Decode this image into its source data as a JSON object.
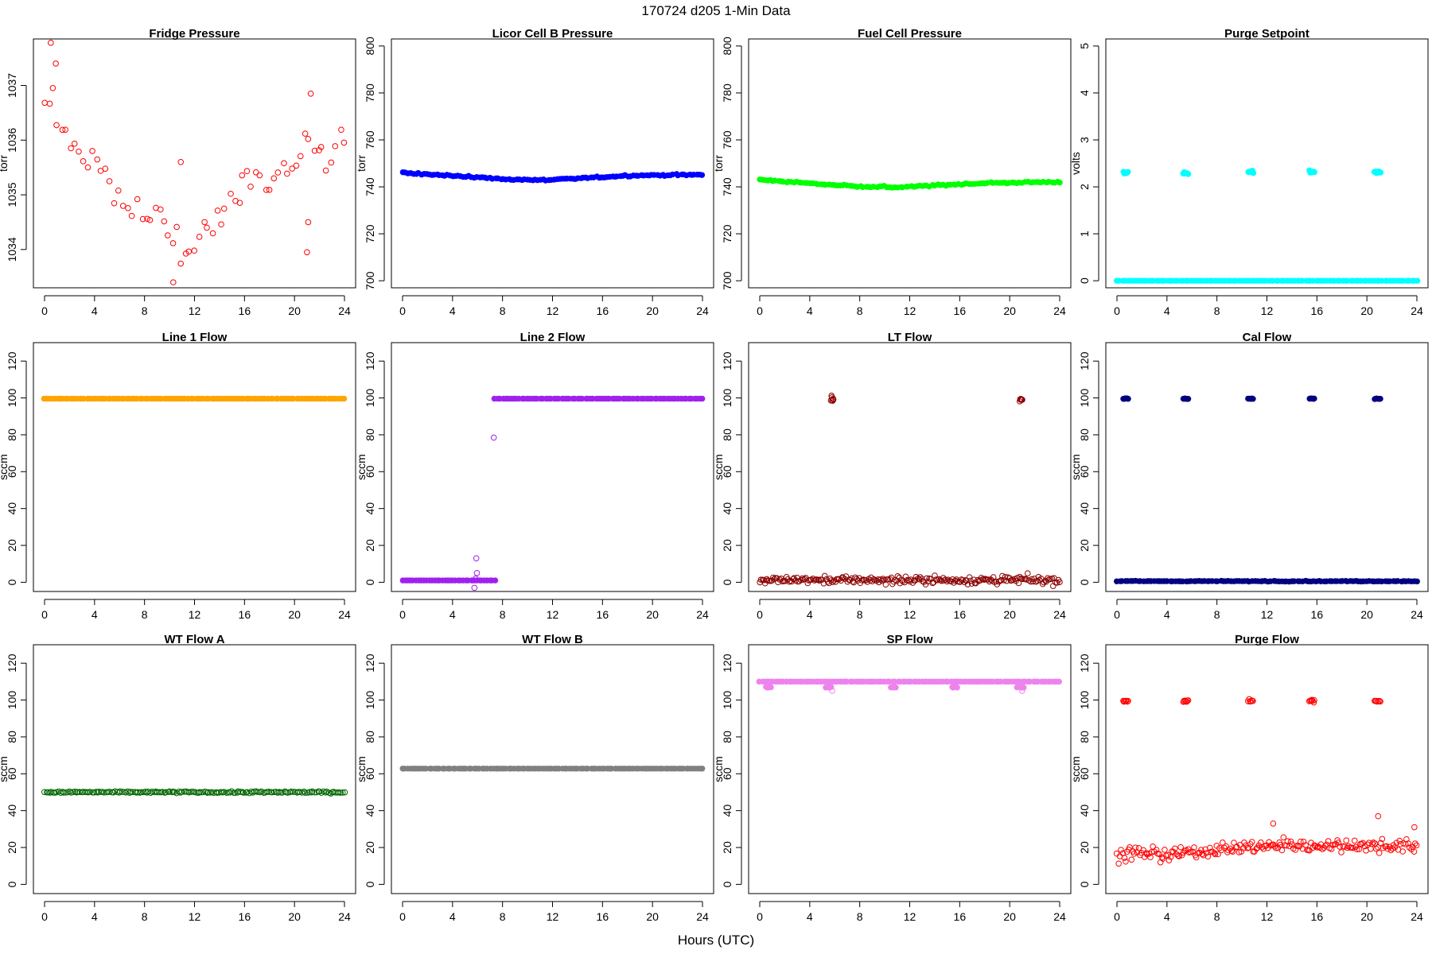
{
  "page": {
    "title": "170724   d205   1-Min Data",
    "xlabel": "Hours (UTC)"
  },
  "chart_data": [
    {
      "type": "scatter",
      "title": "Fridge Pressure",
      "ylabel": "torr",
      "xlim": [
        0,
        24
      ],
      "ylim": [
        1033.3,
        1037.85
      ],
      "xticks": [
        0,
        4,
        8,
        12,
        16,
        20,
        24
      ],
      "yticks": [
        1034,
        1035,
        1036,
        1037
      ],
      "color": "#ff0000",
      "marker": "open-circle",
      "series": [
        {
          "x": [
            0,
            0.2,
            0.4,
            0.6,
            0.8,
            1.0,
            1.5,
            2,
            3,
            4,
            5,
            6,
            7,
            8,
            9,
            10,
            10.5,
            11,
            11.5,
            12,
            12.5,
            13,
            14,
            15,
            15.5,
            16,
            17,
            18,
            19,
            20,
            20.5,
            21,
            21.5,
            22,
            22.5,
            23,
            23.5,
            24
          ],
          "y": [
            1036.5,
            1036.6,
            1036.8,
            1036.9,
            1036.7,
            1036.6,
            1036.2,
            1035.9,
            1035.7,
            1035.5,
            1035.2,
            1035.0,
            1034.9,
            1034.7,
            1034.5,
            1034.3,
            1034.2,
            1034.0,
            1034.0,
            1034.1,
            1034.2,
            1034.4,
            1034.7,
            1035.0,
            1035.1,
            1035.2,
            1035.3,
            1035.2,
            1035.3,
            1035.5,
            1035.8,
            1035.9,
            1035.7,
            1035.8,
            1035.8,
            1035.9,
            1036.0,
            1036.2
          ],
          "jitter": 0.38,
          "density": 18
        }
      ],
      "outliers": [
        {
          "x": 0.5,
          "y": 1037.78
        },
        {
          "x": 0.9,
          "y": 1037.4
        },
        {
          "x": 10.3,
          "y": 1033.4
        },
        {
          "x": 10.9,
          "y": 1035.6
        },
        {
          "x": 21.0,
          "y": 1033.95
        },
        {
          "x": 21.1,
          "y": 1034.5
        },
        {
          "x": 21.3,
          "y": 1036.85
        }
      ]
    },
    {
      "type": "scatter",
      "title": "Licor Cell B Pressure",
      "ylabel": "torr",
      "xlim": [
        0,
        24
      ],
      "ylim": [
        697,
        803
      ],
      "xticks": [
        0,
        4,
        8,
        12,
        16,
        20,
        24
      ],
      "yticks": [
        700,
        720,
        740,
        760,
        780,
        800
      ],
      "color": "#0000ff",
      "marker": "filled-circle",
      "series": [
        {
          "x": [
            0,
            4,
            8,
            11,
            14,
            18,
            24
          ],
          "y": [
            746.0,
            744.8,
            743.3,
            742.8,
            743.6,
            744.8,
            745.2
          ],
          "jitter": 0.35,
          "density": 30
        }
      ]
    },
    {
      "type": "scatter",
      "title": "Fuel Cell Pressure",
      "ylabel": "torr",
      "xlim": [
        0,
        24
      ],
      "ylim": [
        697,
        803
      ],
      "xticks": [
        0,
        4,
        8,
        12,
        16,
        20,
        24
      ],
      "yticks": [
        700,
        720,
        740,
        760,
        780,
        800
      ],
      "color": "#00ff00",
      "marker": "filled-circle",
      "series": [
        {
          "x": [
            0,
            4,
            8,
            11,
            14,
            18,
            24
          ],
          "y": [
            743.0,
            741.5,
            740.2,
            739.8,
            740.6,
            741.6,
            742.1
          ],
          "jitter": 0.35,
          "density": 30
        }
      ]
    },
    {
      "type": "scatter",
      "title": "Purge Setpoint",
      "ylabel": "volts",
      "xlim": [
        0,
        24
      ],
      "ylim": [
        -0.15,
        5.15
      ],
      "xticks": [
        0,
        4,
        8,
        12,
        16,
        20,
        24
      ],
      "yticks": [
        0,
        1,
        2,
        3,
        4,
        5
      ],
      "color": "#00ffff",
      "marker": "filled-circle",
      "series": [
        {
          "x": [
            0,
            24
          ],
          "y": [
            0,
            0
          ],
          "jitter": 0.0,
          "density": 30
        },
        {
          "x": [
            0.5,
            0.9
          ],
          "y": [
            2.3,
            2.3
          ],
          "jitter": 0.03,
          "density": 40
        },
        {
          "x": [
            5.3,
            5.7
          ],
          "y": [
            2.29,
            2.29
          ],
          "jitter": 0.03,
          "density": 40
        },
        {
          "x": [
            10.5,
            10.9
          ],
          "y": [
            2.32,
            2.32
          ],
          "jitter": 0.03,
          "density": 40
        },
        {
          "x": [
            15.4,
            15.8
          ],
          "y": [
            2.31,
            2.31
          ],
          "jitter": 0.03,
          "density": 40
        },
        {
          "x": [
            20.6,
            21.1
          ],
          "y": [
            2.31,
            2.31
          ],
          "jitter": 0.03,
          "density": 40
        }
      ]
    },
    {
      "type": "scatter",
      "title": "Line 1 Flow",
      "ylabel": "sccm",
      "xlim": [
        0,
        24
      ],
      "ylim": [
        -5,
        130
      ],
      "xticks": [
        0,
        4,
        8,
        12,
        16,
        20,
        24
      ],
      "yticks": [
        0,
        20,
        40,
        60,
        80,
        100,
        120
      ],
      "color": "#ffa500",
      "marker": "filled-circle",
      "series": [
        {
          "x": [
            0,
            24
          ],
          "y": [
            99.6,
            99.6
          ],
          "jitter": 0.0,
          "density": 30
        }
      ]
    },
    {
      "type": "scatter",
      "title": "Line 2 Flow",
      "ylabel": "sccm",
      "xlim": [
        0,
        24
      ],
      "ylim": [
        -5,
        130
      ],
      "xticks": [
        0,
        4,
        8,
        12,
        16,
        20,
        24
      ],
      "yticks": [
        0,
        20,
        40,
        60,
        80,
        100,
        120
      ],
      "color": "#a020f0",
      "marker": "filled-circle",
      "series": [
        {
          "x": [
            0,
            7.4
          ],
          "y": [
            1.0,
            1.0
          ],
          "jitter": 0.0,
          "density": 30
        },
        {
          "x": [
            7.4,
            24
          ],
          "y": [
            99.6,
            99.6
          ],
          "jitter": 0.0,
          "density": 30
        }
      ],
      "outliers": [
        {
          "x": 7.3,
          "y": 78.5
        },
        {
          "x": 5.9,
          "y": 13.0
        },
        {
          "x": 5.95,
          "y": 5.0
        },
        {
          "x": 5.85,
          "y": 2.0
        },
        {
          "x": 5.75,
          "y": -3.0
        }
      ]
    },
    {
      "type": "scatter",
      "title": "LT Flow",
      "ylabel": "sccm",
      "xlim": [
        0,
        24
      ],
      "ylim": [
        -5,
        130
      ],
      "xticks": [
        0,
        4,
        8,
        12,
        16,
        20,
        24
      ],
      "yticks": [
        0,
        20,
        40,
        60,
        80,
        100,
        120
      ],
      "color": "#8b0000",
      "marker": "open-circle",
      "series": [
        {
          "x": [
            0,
            24
          ],
          "y": [
            1.2,
            1.2
          ],
          "jitter": 2.2,
          "density": 60
        },
        {
          "x": [
            5.7,
            5.9
          ],
          "y": [
            99.5,
            99.5
          ],
          "jitter": 2.0,
          "density": 40
        },
        {
          "x": [
            20.8,
            21.0
          ],
          "y": [
            99.5,
            99.5
          ],
          "jitter": 2.0,
          "density": 40
        }
      ]
    },
    {
      "type": "scatter",
      "title": "Cal Flow",
      "ylabel": "sccm",
      "xlim": [
        0,
        24
      ],
      "ylim": [
        -5,
        130
      ],
      "xticks": [
        0,
        4,
        8,
        12,
        16,
        20,
        24
      ],
      "yticks": [
        0,
        20,
        40,
        60,
        80,
        100,
        120
      ],
      "color": "#000080",
      "marker": "filled-circle",
      "series": [
        {
          "x": [
            0,
            24
          ],
          "y": [
            0.6,
            0.6
          ],
          "jitter": 0.2,
          "density": 30
        },
        {
          "x": [
            0.5,
            0.9
          ],
          "y": [
            99.6,
            99.6
          ],
          "jitter": 0.2,
          "density": 40
        },
        {
          "x": [
            5.3,
            5.7
          ],
          "y": [
            99.6,
            99.6
          ],
          "jitter": 0.2,
          "density": 40
        },
        {
          "x": [
            10.5,
            10.9
          ],
          "y": [
            99.6,
            99.6
          ],
          "jitter": 0.2,
          "density": 40
        },
        {
          "x": [
            15.4,
            15.8
          ],
          "y": [
            99.6,
            99.6
          ],
          "jitter": 0.2,
          "density": 40
        },
        {
          "x": [
            20.6,
            21.1
          ],
          "y": [
            99.6,
            99.6
          ],
          "jitter": 0.2,
          "density": 40
        }
      ]
    },
    {
      "type": "scatter",
      "title": "WT Flow A",
      "ylabel": "sccm",
      "xlim": [
        0,
        24
      ],
      "ylim": [
        -5,
        130
      ],
      "xticks": [
        0,
        4,
        8,
        12,
        16,
        20,
        24
      ],
      "yticks": [
        0,
        20,
        40,
        60,
        80,
        100,
        120
      ],
      "color": "#006400",
      "marker": "open-circle",
      "series": [
        {
          "x": [
            0,
            24
          ],
          "y": [
            50.0,
            50.0
          ],
          "jitter": 0.5,
          "density": 45
        }
      ]
    },
    {
      "type": "scatter",
      "title": "WT Flow B",
      "ylabel": "sccm",
      "xlim": [
        0,
        24
      ],
      "ylim": [
        -5,
        130
      ],
      "xticks": [
        0,
        4,
        8,
        12,
        16,
        20,
        24
      ],
      "yticks": [
        0,
        20,
        40,
        60,
        80,
        100,
        120
      ],
      "color": "#808080",
      "marker": "filled-circle",
      "series": [
        {
          "x": [
            0,
            24
          ],
          "y": [
            62.8,
            62.8
          ],
          "jitter": 0.0,
          "density": 30
        }
      ]
    },
    {
      "type": "scatter",
      "title": "SP Flow",
      "ylabel": "sccm",
      "xlim": [
        0,
        24
      ],
      "ylim": [
        -5,
        130
      ],
      "xticks": [
        0,
        4,
        8,
        12,
        16,
        20,
        24
      ],
      "yticks": [
        0,
        20,
        40,
        60,
        80,
        100,
        120
      ],
      "color": "#ee82ee",
      "marker": "filled-circle",
      "series": [
        {
          "x": [
            0,
            24
          ],
          "y": [
            110.0,
            110.0
          ],
          "jitter": 0.0,
          "density": 30
        },
        {
          "x": [
            0.5,
            0.9
          ],
          "y": [
            107.0,
            107.0
          ],
          "jitter": 0.3,
          "density": 30
        },
        {
          "x": [
            5.3,
            5.7
          ],
          "y": [
            107.0,
            107.0
          ],
          "jitter": 0.3,
          "density": 30
        },
        {
          "x": [
            10.5,
            10.9
          ],
          "y": [
            107.0,
            107.0
          ],
          "jitter": 0.3,
          "density": 30
        },
        {
          "x": [
            15.4,
            15.8
          ],
          "y": [
            107.0,
            107.0
          ],
          "jitter": 0.3,
          "density": 30
        },
        {
          "x": [
            20.6,
            21.1
          ],
          "y": [
            107.0,
            107.0
          ],
          "jitter": 0.3,
          "density": 30
        }
      ],
      "outliers": [
        {
          "x": 5.8,
          "y": 105.0
        },
        {
          "x": 21.0,
          "y": 105.0
        }
      ]
    },
    {
      "type": "scatter",
      "title": "Purge Flow",
      "ylabel": "sccm",
      "xlim": [
        0,
        24
      ],
      "ylim": [
        -5,
        130
      ],
      "xticks": [
        0,
        4,
        8,
        12,
        16,
        20,
        24
      ],
      "yticks": [
        0,
        20,
        40,
        60,
        80,
        100,
        120
      ],
      "color": "#ff0000",
      "marker": "open-circle",
      "series": [
        {
          "x": [
            0,
            2,
            4,
            6,
            8,
            10,
            12,
            14,
            16,
            18,
            20,
            22,
            24
          ],
          "y": [
            16,
            17,
            16,
            17,
            19,
            20,
            21,
            21,
            21,
            21,
            21,
            21,
            20
          ],
          "jitter": 3.8,
          "density": 55
        },
        {
          "x": [
            0.5,
            0.9
          ],
          "y": [
            99.5,
            99.5
          ],
          "jitter": 0.8,
          "density": 40
        },
        {
          "x": [
            5.3,
            5.7
          ],
          "y": [
            99.5,
            99.5
          ],
          "jitter": 0.8,
          "density": 40
        },
        {
          "x": [
            10.5,
            10.9
          ],
          "y": [
            99.5,
            99.5
          ],
          "jitter": 0.8,
          "density": 40
        },
        {
          "x": [
            15.4,
            15.8
          ],
          "y": [
            99.5,
            99.5
          ],
          "jitter": 0.8,
          "density": 40
        },
        {
          "x": [
            20.6,
            21.1
          ],
          "y": [
            99.5,
            99.5
          ],
          "jitter": 0.8,
          "density": 40
        }
      ],
      "outliers": [
        {
          "x": 20.9,
          "y": 37.0
        },
        {
          "x": 12.5,
          "y": 33.0
        },
        {
          "x": 23.8,
          "y": 31.0
        }
      ]
    }
  ]
}
